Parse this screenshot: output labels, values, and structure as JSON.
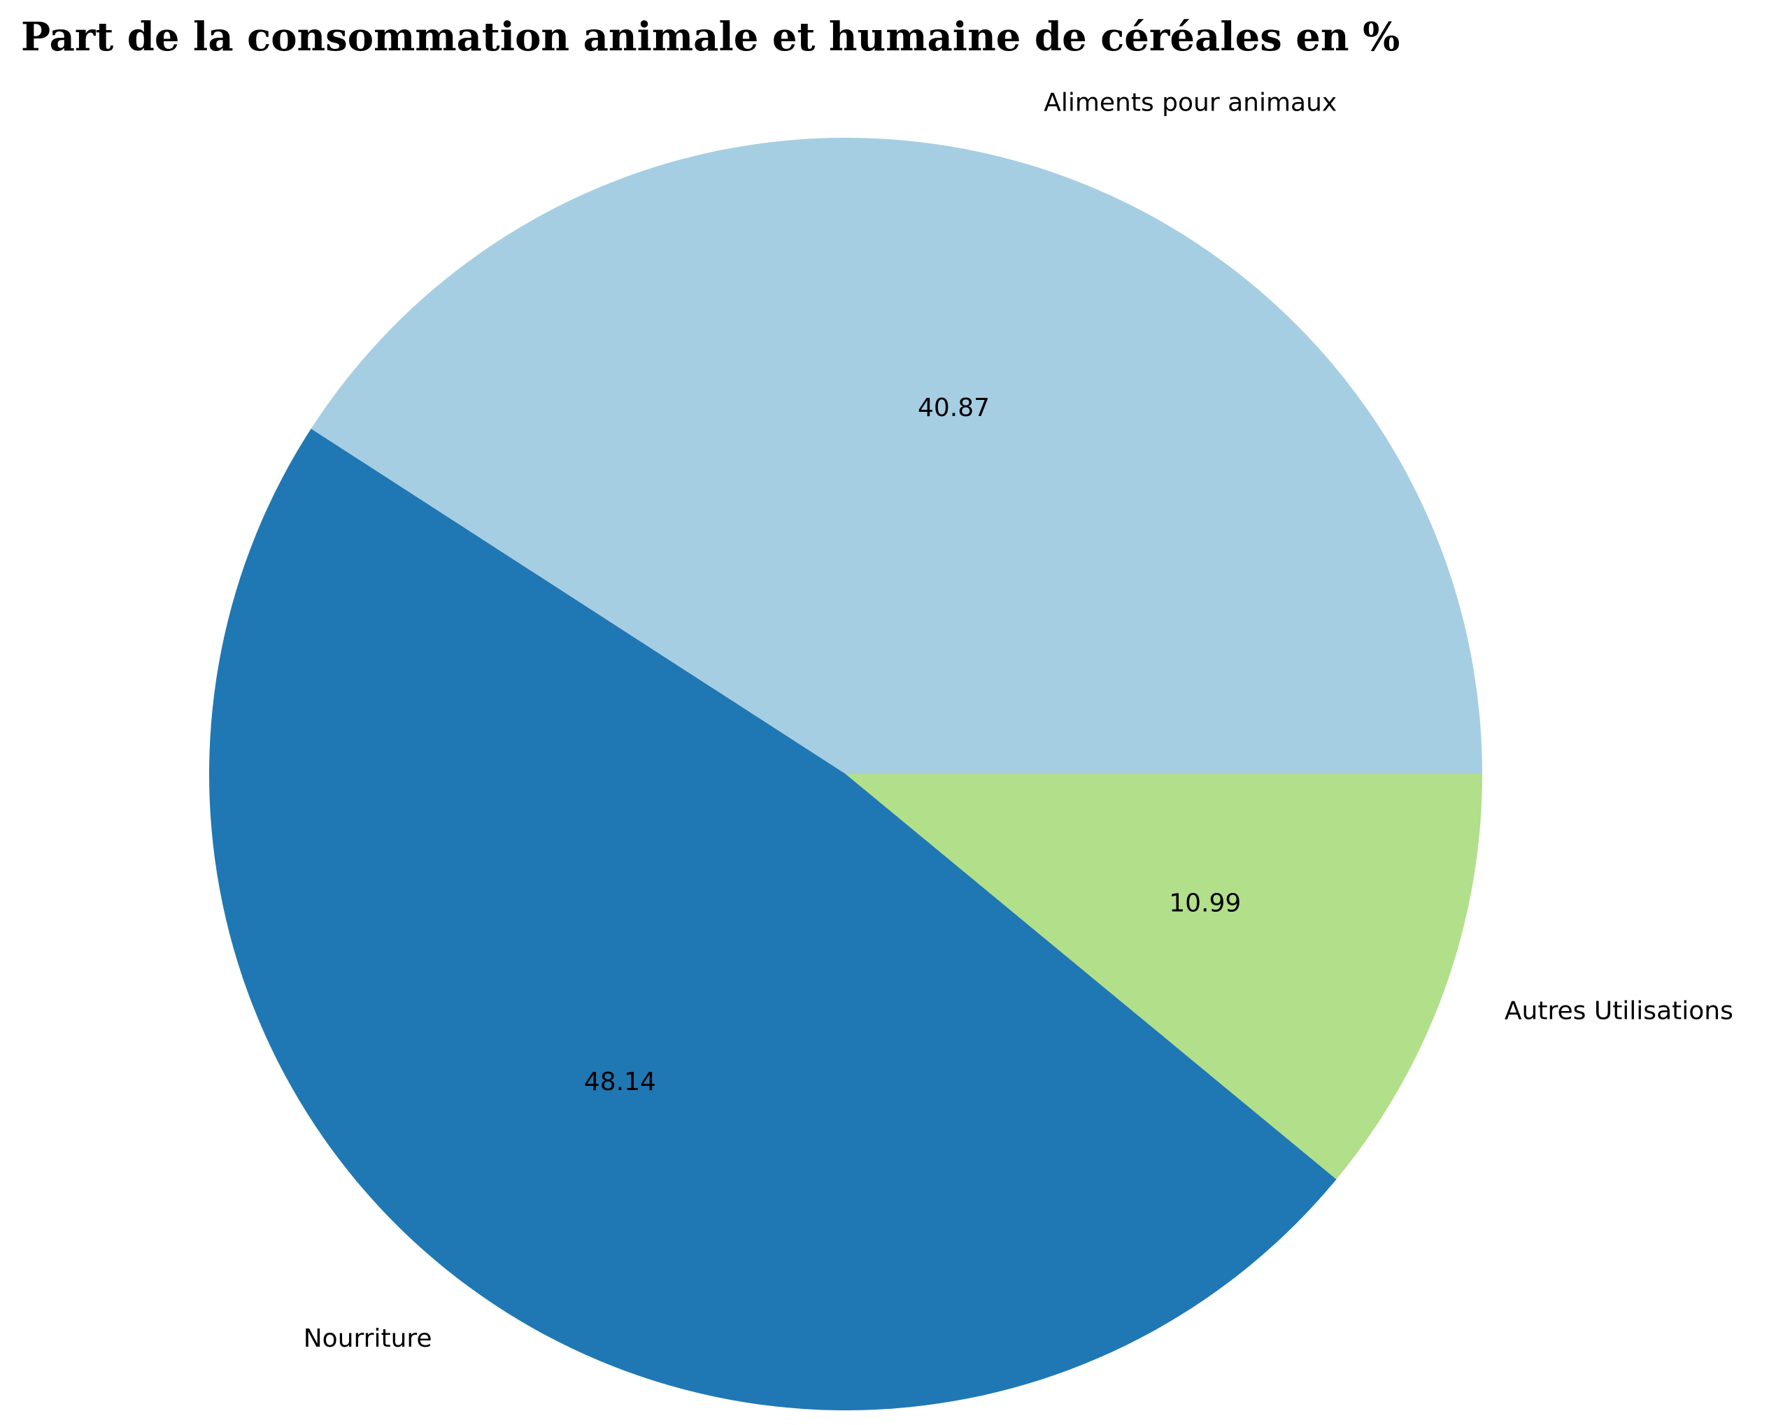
{
  "chart_data": {
    "type": "pie",
    "title": "Part de la consommation animale et humaine de céréales en %",
    "categories": [
      "Aliments pour animaux",
      "Nourriture",
      "Autres Utilisations"
    ],
    "values": [
      40.87,
      48.14,
      10.99
    ],
    "value_labels": [
      "40.87",
      "48.14",
      "10.99"
    ],
    "colors": [
      "#a6cee3",
      "#1f78b4",
      "#b2df8a"
    ],
    "start_angle_deg": 0,
    "direction": "counterclockwise",
    "legend": "none"
  }
}
